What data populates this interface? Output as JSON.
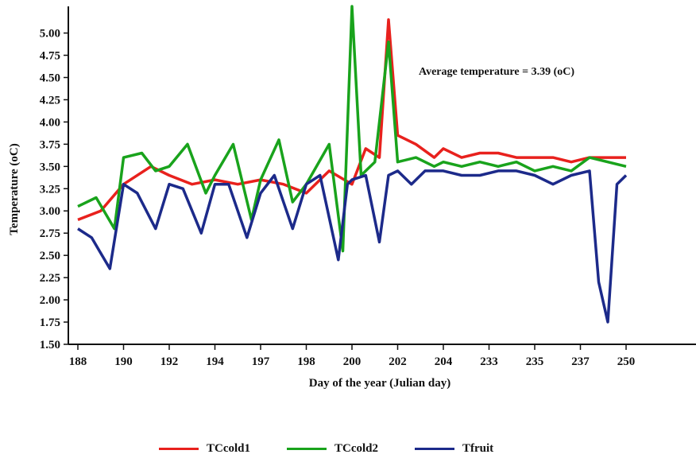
{
  "chart_data": {
    "type": "line",
    "title": "",
    "xlabel": "Day of the year (Julian day)",
    "ylabel": "Temperature (oC)",
    "annotation": "Average temperature = 3.39 (oC)",
    "ylim": [
      1.5,
      5.3
    ],
    "y_ticks": [
      "1.50",
      "1.75",
      "2.00",
      "2.25",
      "2.50",
      "2.75",
      "3.00",
      "3.25",
      "3.50",
      "3.75",
      "4.00",
      "4.25",
      "4.50",
      "4.75",
      "5.00"
    ],
    "x_ticks": [
      "188",
      "190",
      "192",
      "194",
      "197",
      "198",
      "200",
      "202",
      "204",
      "233",
      "235",
      "237",
      "250"
    ],
    "grid": false,
    "legend": "bottom",
    "series": [
      {
        "name": "TCcold1",
        "color": "#e8211d",
        "x": [
          0,
          0.5,
          1,
          1.6,
          2,
          2.5,
          3,
          3.5,
          4,
          4.5,
          5,
          5.5,
          6,
          6.3,
          6.6,
          6.8,
          7,
          7.4,
          7.8,
          8,
          8.4,
          8.8,
          9.2,
          9.6,
          10,
          10.4,
          10.8,
          11.2,
          11.6,
          12
        ],
        "values": [
          2.9,
          3.0,
          3.3,
          3.5,
          3.4,
          3.3,
          3.35,
          3.3,
          3.35,
          3.3,
          3.2,
          3.45,
          3.3,
          3.7,
          3.6,
          5.15,
          3.85,
          3.75,
          3.6,
          3.7,
          3.6,
          3.65,
          3.65,
          3.6,
          3.6,
          3.6,
          3.55,
          3.6,
          3.6,
          3.6
        ]
      },
      {
        "name": "TCcold2",
        "color": "#19a31c",
        "x": [
          0,
          0.4,
          0.8,
          1,
          1.4,
          1.7,
          2,
          2.4,
          2.8,
          3,
          3.4,
          3.8,
          4,
          4.4,
          4.7,
          5,
          5.5,
          5.8,
          6,
          6.2,
          6.5,
          6.8,
          7,
          7.4,
          7.8,
          8,
          8.4,
          8.8,
          9.2,
          9.6,
          10,
          10.4,
          10.8,
          11.2,
          11.6,
          12
        ],
        "values": [
          3.05,
          3.15,
          2.8,
          3.6,
          3.65,
          3.45,
          3.5,
          3.75,
          3.2,
          3.4,
          3.75,
          2.9,
          3.35,
          3.8,
          3.1,
          3.3,
          3.75,
          2.55,
          5.3,
          3.4,
          3.55,
          4.9,
          3.55,
          3.6,
          3.5,
          3.55,
          3.5,
          3.55,
          3.5,
          3.55,
          3.45,
          3.5,
          3.45,
          3.6,
          3.55,
          3.5
        ]
      },
      {
        "name": "Tfruit",
        "color": "#1c2a8a",
        "x": [
          0,
          0.3,
          0.7,
          1,
          1.3,
          1.7,
          2,
          2.3,
          2.7,
          3,
          3.3,
          3.7,
          4,
          4.3,
          4.7,
          5,
          5.3,
          5.7,
          5.9,
          6,
          6.3,
          6.6,
          6.8,
          7,
          7.3,
          7.6,
          8,
          8.4,
          8.8,
          9.2,
          9.6,
          10,
          10.4,
          10.8,
          11.2,
          11.4,
          11.6,
          11.8,
          12
        ],
        "values": [
          2.8,
          2.7,
          2.35,
          3.3,
          3.2,
          2.8,
          3.3,
          3.25,
          2.75,
          3.3,
          3.3,
          2.7,
          3.2,
          3.4,
          2.8,
          3.3,
          3.4,
          2.45,
          3.3,
          3.35,
          3.4,
          2.65,
          3.4,
          3.45,
          3.3,
          3.45,
          3.45,
          3.4,
          3.4,
          3.45,
          3.45,
          3.4,
          3.3,
          3.4,
          3.45,
          2.2,
          1.75,
          3.3,
          3.4
        ]
      }
    ]
  }
}
